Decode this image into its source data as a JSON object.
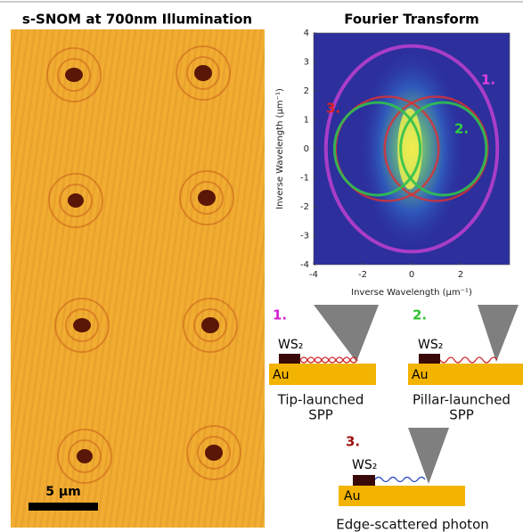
{
  "left_panel": {
    "title": "s-SNOM at 700nm Illumination",
    "scale_bar": "5 µm"
  },
  "fourier": {
    "title": "Fourier Transform",
    "xlabel": "Inverse Wavelength (µm⁻¹)",
    "ylabel": "Inverse Wavelength (µm⁻¹)",
    "xlim": [
      -4,
      4
    ],
    "ylim": [
      -4,
      4
    ],
    "xticks": [
      -4,
      -2,
      0,
      2
    ],
    "yticks": [
      -4,
      -3,
      -2,
      -1,
      0,
      1,
      2,
      3,
      4
    ],
    "circle_labels": [
      "1.",
      "2.",
      "3."
    ]
  },
  "schematics": [
    {
      "label": "1.",
      "material_top": "WS₂",
      "substrate": "Au",
      "caption": [
        "Tip-launched",
        "SPP"
      ]
    },
    {
      "label": "2.",
      "material_top": "WS₂",
      "substrate": "Au",
      "caption": [
        "Pillar-launched",
        "SPP"
      ]
    },
    {
      "label": "3.",
      "material_top": "WS₂",
      "substrate": "Au",
      "caption": [
        "Edge-scattered photon"
      ]
    }
  ]
}
